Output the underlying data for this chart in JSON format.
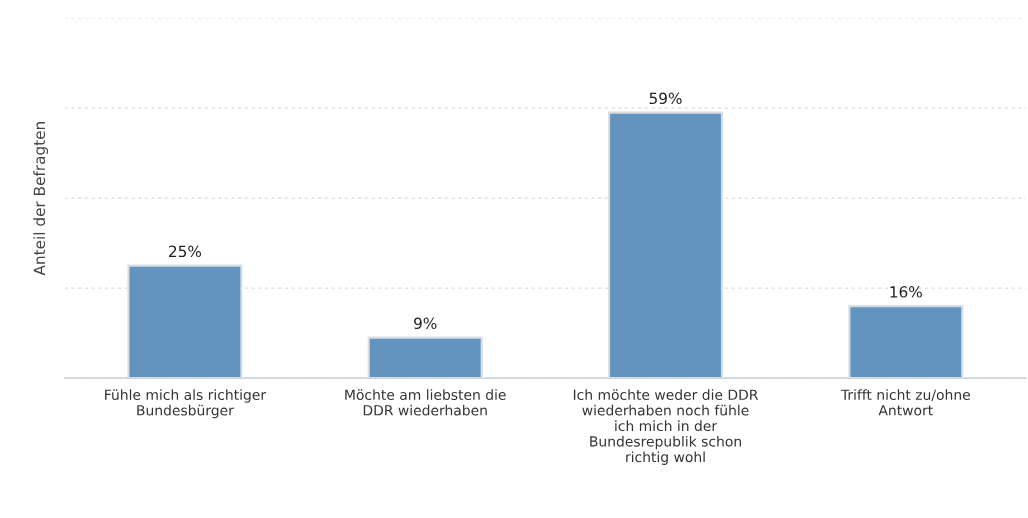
{
  "chart_data": {
    "type": "bar",
    "ylabel": "Anteil der Befragten",
    "categories": [
      "Fühle mich als richtiger\nBundesbürger",
      "Möchte am liebsten die\nDDR wiederhaben",
      "Ich möchte weder die DDR\nwiederhaben noch fühle\nich mich in der\nBundesrepublik schon\nrichtig wohl",
      "Trifft nicht zu/ohne\nAntwort"
    ],
    "values": [
      25,
      9,
      59,
      16
    ],
    "value_labels": [
      "25%",
      "9%",
      "59%",
      "16%"
    ],
    "color": "#6394c0",
    "ylim": [
      0,
      80
    ],
    "yticks": [
      {
        "value": 0,
        "label": null
      },
      {
        "value": 20,
        "label": null
      },
      {
        "value": 40,
        "label": null
      },
      {
        "value": 60,
        "label": null
      },
      {
        "value": 80,
        "label": null
      }
    ],
    "tick_labels": "x",
    "grid": "y",
    "legend": false
  }
}
